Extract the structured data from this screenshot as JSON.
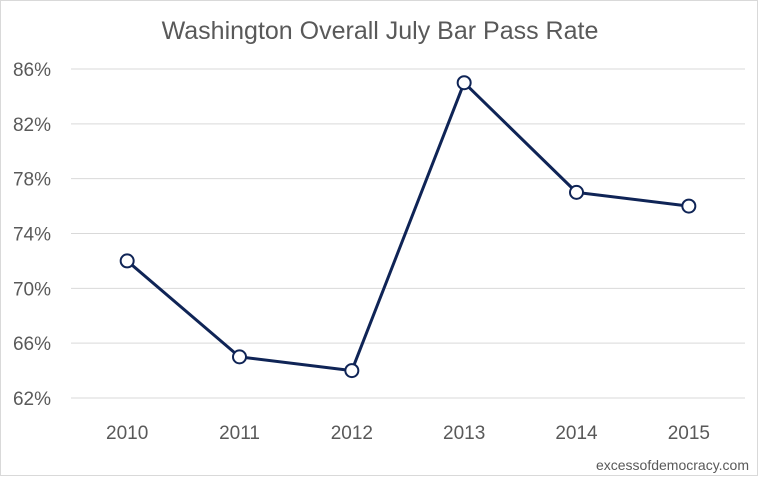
{
  "chart_data": {
    "type": "line",
    "title": "Washington Overall July Bar Pass Rate",
    "xlabel": "",
    "ylabel": "",
    "categories": [
      "2010",
      "2011",
      "2012",
      "2013",
      "2014",
      "2015"
    ],
    "series": [
      {
        "values": [
          72,
          65,
          64,
          85,
          77,
          76
        ]
      }
    ],
    "ylim": [
      62,
      86
    ],
    "yticks": [
      62,
      66,
      70,
      74,
      78,
      82,
      86
    ],
    "ytick_labels": [
      "62%",
      "66%",
      "70%",
      "74%",
      "78%",
      "82%",
      "86%"
    ],
    "grid": true,
    "line_color": "#0f2456",
    "marker": "hollow-circle"
  },
  "watermark": "excessofdemocracy.com"
}
